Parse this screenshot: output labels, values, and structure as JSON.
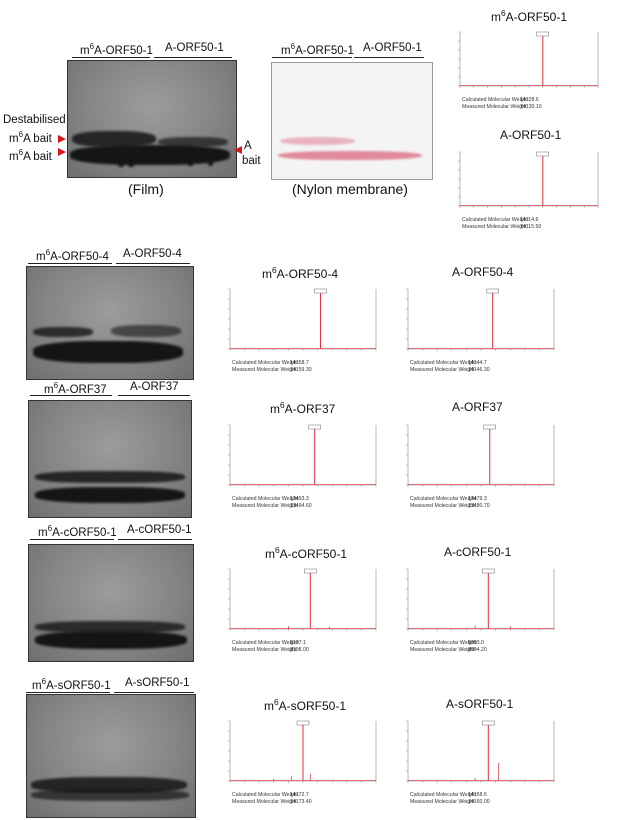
{
  "top": {
    "film_labels": [
      "m6A-ORF50-1",
      "A-ORF50-1"
    ],
    "nylon_labels": [
      "m6A-ORF50-1",
      "A-ORF50-1"
    ],
    "left_labels": [
      "Destabilised",
      "m6A bait",
      "m6A bait"
    ],
    "right_label": [
      "A",
      "bait"
    ],
    "film_caption": "(Film)",
    "nylon_caption": "(Nylon membrane)"
  },
  "blots": [
    {
      "labels": [
        "m6A-ORF50-4",
        "A-ORF50-4"
      ]
    },
    {
      "labels": [
        "m6A-ORF37",
        "A-ORF37"
      ]
    },
    {
      "labels": [
        "m6A-cORF50-1",
        "A-cORF50-1"
      ]
    },
    {
      "labels": [
        "m6A-sORF50-1",
        "A-sORF50-1"
      ]
    }
  ],
  "spectra": [
    {
      "title": "m6A-ORF50-1",
      "calc_label": "Calculated Molecular Weight:",
      "calc": "14128.6",
      "meas_label": "Measured Molecular Weight:",
      "meas": "14130.10",
      "peak": 0.6,
      "extra": []
    },
    {
      "title": "A-ORF50-1",
      "calc_label": "Calculated Molecular Weight:",
      "calc": "14114.6",
      "meas_label": "Measured Molecular Weight:",
      "meas": "14115.50",
      "peak": 0.6,
      "extra": []
    },
    {
      "title": "m6A-ORF50-4",
      "calc_label": "Calculated Molecular Weight:",
      "calc": "14158.7",
      "meas_label": "Measured Molecular Weight:",
      "meas": "14159.30",
      "peak": 0.62,
      "extra": []
    },
    {
      "title": "A-ORF50-4",
      "calc_label": "Calculated Molecular Weight:",
      "calc": "14144.7",
      "meas_label": "Measured Molecular Weight:",
      "meas": "14146.30",
      "peak": 0.58,
      "extra": []
    },
    {
      "title": "m6A-ORF37",
      "calc_label": "Calculated Molecular Weight:",
      "calc": "13493.3",
      "meas_label": "Measured Molecular Weight:",
      "meas": "13494.60",
      "peak": 0.58,
      "extra": []
    },
    {
      "title": "A-ORF37",
      "calc_label": "Calculated Molecular Weight:",
      "calc": "13479.3",
      "meas_label": "Measured Molecular Weight:",
      "meas": "13480.70",
      "peak": 0.56,
      "extra": []
    },
    {
      "title": "m6A-cORF50-1",
      "calc_label": "Calculated Molecular Weight:",
      "calc": "8107.1",
      "meas_label": "Measured Molecular Weight:",
      "meas": "8108.00",
      "peak": 0.55,
      "extra": [
        [
          0.4,
          0.05
        ],
        [
          0.68,
          0.04
        ]
      ]
    },
    {
      "title": "A-cORF50-1",
      "calc_label": "Calculated Molecular Weight:",
      "calc": "8093.0",
      "meas_label": "Measured Molecular Weight:",
      "meas": "8094.20",
      "peak": 0.55,
      "extra": [
        [
          0.46,
          0.06
        ],
        [
          0.7,
          0.05
        ]
      ]
    },
    {
      "title": "m6A-sORF50-1",
      "calc_label": "Calculated Molecular Weight:",
      "calc": "14172.7",
      "meas_label": "Measured Molecular Weight:",
      "meas": "14173.40",
      "peak": 0.5,
      "extra": [
        [
          0.42,
          0.08
        ],
        [
          0.55,
          0.12
        ],
        [
          0.3,
          0.04
        ]
      ]
    },
    {
      "title": "A-sORF50-1",
      "calc_label": "Calculated Molecular Weight:",
      "calc": "14158.6",
      "meas_label": "Measured Molecular Weight:",
      "meas": "14160.00",
      "peak": 0.55,
      "extra": [
        [
          0.62,
          0.3
        ],
        [
          0.46,
          0.05
        ]
      ]
    }
  ],
  "colors": {
    "trace": "#e2303a",
    "arrow": "#d7191c"
  }
}
